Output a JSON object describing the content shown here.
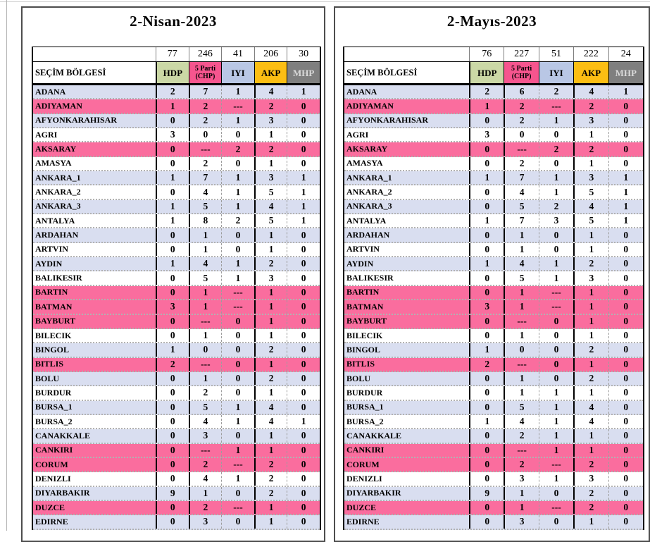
{
  "columns": {
    "region_header": "SEÇİM BÖLGESİ",
    "parties": [
      {
        "label": "HDP"
      },
      {
        "label": "5 Parti",
        "sub": "(CHP)"
      },
      {
        "label": "IYI"
      },
      {
        "label": "AKP"
      },
      {
        "label": "MHP"
      }
    ]
  },
  "colors": {
    "party_bg": [
      "#cbd8a6",
      "#f6558e",
      "#b9c7e5",
      "#fcbe13",
      "#7f7f7f"
    ],
    "party_text": [
      "#000000",
      "#000000",
      "#000000",
      "#000000",
      "#d9d9d9"
    ],
    "row_bg": {
      "white": "#ffffff",
      "lav": "#d9def0",
      "pink": "#fa6d9e"
    }
  },
  "tables": [
    {
      "title": "2-Nisan-2023",
      "totals": [
        "77",
        "246",
        "41",
        "206",
        "30"
      ],
      "rows": [
        {
          "region": "ADANA",
          "hl": "lav",
          "values": [
            "2",
            "7",
            "1",
            "4",
            "1"
          ]
        },
        {
          "region": "ADIYAMAN",
          "hl": "pink",
          "values": [
            "1",
            "2",
            "---",
            "2",
            "0"
          ]
        },
        {
          "region": "AFYONKARAHISAR",
          "hl": "lav",
          "values": [
            "0",
            "2",
            "1",
            "3",
            "0"
          ]
        },
        {
          "region": "AGRI",
          "hl": "white",
          "values": [
            "3",
            "0",
            "0",
            "1",
            "0"
          ]
        },
        {
          "region": "AKSARAY",
          "hl": "pink",
          "values": [
            "0",
            "---",
            "2",
            "2",
            "0"
          ]
        },
        {
          "region": "AMASYA",
          "hl": "white",
          "values": [
            "0",
            "2",
            "0",
            "1",
            "0"
          ]
        },
        {
          "region": "ANKARA_1",
          "hl": "lav",
          "values": [
            "1",
            "7",
            "1",
            "3",
            "1"
          ]
        },
        {
          "region": "ANKARA_2",
          "hl": "white",
          "values": [
            "0",
            "4",
            "1",
            "5",
            "1"
          ]
        },
        {
          "region": "ANKARA_3",
          "hl": "lav",
          "values": [
            "1",
            "5",
            "1",
            "4",
            "1"
          ]
        },
        {
          "region": "ANTALYA",
          "hl": "white",
          "values": [
            "1",
            "8",
            "2",
            "5",
            "1"
          ]
        },
        {
          "region": "ARDAHAN",
          "hl": "lav",
          "values": [
            "0",
            "1",
            "0",
            "1",
            "0"
          ]
        },
        {
          "region": "ARTVIN",
          "hl": "white",
          "values": [
            "0",
            "1",
            "0",
            "1",
            "0"
          ]
        },
        {
          "region": "AYDIN",
          "hl": "lav",
          "values": [
            "1",
            "4",
            "1",
            "2",
            "0"
          ]
        },
        {
          "region": "BALIKESIR",
          "hl": "white",
          "values": [
            "0",
            "5",
            "1",
            "3",
            "0"
          ]
        },
        {
          "region": "BARTIN",
          "hl": "pink",
          "values": [
            "0",
            "1",
            "---",
            "1",
            "0"
          ]
        },
        {
          "region": "BATMAN",
          "hl": "pink",
          "values": [
            "3",
            "1",
            "---",
            "1",
            "0"
          ]
        },
        {
          "region": "BAYBURT",
          "hl": "pink",
          "values": [
            "0",
            "---",
            "0",
            "1",
            "0"
          ]
        },
        {
          "region": "BILECIK",
          "hl": "white",
          "values": [
            "0",
            "1",
            "0",
            "1",
            "0"
          ]
        },
        {
          "region": "BINGOL",
          "hl": "lav",
          "values": [
            "1",
            "0",
            "0",
            "2",
            "0"
          ]
        },
        {
          "region": "BITLIS",
          "hl": "pink",
          "values": [
            "2",
            "---",
            "0",
            "1",
            "0"
          ]
        },
        {
          "region": "BOLU",
          "hl": "lav",
          "values": [
            "0",
            "1",
            "0",
            "2",
            "0"
          ]
        },
        {
          "region": "BURDUR",
          "hl": "white",
          "values": [
            "0",
            "2",
            "0",
            "1",
            "0"
          ]
        },
        {
          "region": "BURSA_1",
          "hl": "lav",
          "values": [
            "0",
            "5",
            "1",
            "4",
            "0"
          ]
        },
        {
          "region": "BURSA_2",
          "hl": "white",
          "values": [
            "0",
            "4",
            "1",
            "4",
            "1"
          ]
        },
        {
          "region": "CANAKKALE",
          "hl": "lav",
          "values": [
            "0",
            "3",
            "0",
            "1",
            "0"
          ]
        },
        {
          "region": "CANKIRI",
          "hl": "pink",
          "values": [
            "0",
            "---",
            "1",
            "1",
            "0"
          ]
        },
        {
          "region": "CORUM",
          "hl": "pink",
          "values": [
            "0",
            "2",
            "---",
            "2",
            "0"
          ]
        },
        {
          "region": "DENIZLI",
          "hl": "white",
          "values": [
            "0",
            "4",
            "1",
            "2",
            "0"
          ]
        },
        {
          "region": "DIYARBAKIR",
          "hl": "lav",
          "values": [
            "9",
            "1",
            "0",
            "2",
            "0"
          ]
        },
        {
          "region": "DUZCE",
          "hl": "pink",
          "values": [
            "0",
            "2",
            "---",
            "1",
            "0"
          ]
        },
        {
          "region": "EDIRNE",
          "hl": "lav",
          "values": [
            "0",
            "3",
            "0",
            "1",
            "0"
          ]
        }
      ]
    },
    {
      "title": "2-Mayıs-2023",
      "totals": [
        "76",
        "227",
        "51",
        "222",
        "24"
      ],
      "rows": [
        {
          "region": "ADANA",
          "hl": "lav",
          "values": [
            "2",
            "6",
            "2",
            "4",
            "1"
          ]
        },
        {
          "region": "ADIYAMAN",
          "hl": "pink",
          "values": [
            "1",
            "2",
            "---",
            "2",
            "0"
          ]
        },
        {
          "region": "AFYONKARAHISAR",
          "hl": "lav",
          "values": [
            "0",
            "2",
            "1",
            "3",
            "0"
          ]
        },
        {
          "region": "AGRI",
          "hl": "white",
          "values": [
            "3",
            "0",
            "0",
            "1",
            "0"
          ]
        },
        {
          "region": "AKSARAY",
          "hl": "pink",
          "values": [
            "0",
            "---",
            "2",
            "2",
            "0"
          ]
        },
        {
          "region": "AMASYA",
          "hl": "white",
          "values": [
            "0",
            "2",
            "0",
            "1",
            "0"
          ]
        },
        {
          "region": "ANKARA_1",
          "hl": "lav",
          "values": [
            "1",
            "7",
            "1",
            "3",
            "1"
          ]
        },
        {
          "region": "ANKARA_2",
          "hl": "white",
          "values": [
            "0",
            "4",
            "1",
            "5",
            "1"
          ]
        },
        {
          "region": "ANKARA_3",
          "hl": "lav",
          "values": [
            "0",
            "5",
            "2",
            "4",
            "1"
          ]
        },
        {
          "region": "ANTALYA",
          "hl": "white",
          "values": [
            "1",
            "7",
            "3",
            "5",
            "1"
          ]
        },
        {
          "region": "ARDAHAN",
          "hl": "lav",
          "values": [
            "0",
            "1",
            "0",
            "1",
            "0"
          ]
        },
        {
          "region": "ARTVIN",
          "hl": "white",
          "values": [
            "0",
            "1",
            "0",
            "1",
            "0"
          ]
        },
        {
          "region": "AYDIN",
          "hl": "lav",
          "values": [
            "1",
            "4",
            "1",
            "2",
            "0"
          ]
        },
        {
          "region": "BALIKESIR",
          "hl": "white",
          "values": [
            "0",
            "5",
            "1",
            "3",
            "0"
          ]
        },
        {
          "region": "BARTIN",
          "hl": "pink",
          "values": [
            "0",
            "1",
            "---",
            "1",
            "0"
          ]
        },
        {
          "region": "BATMAN",
          "hl": "pink",
          "values": [
            "3",
            "1",
            "---",
            "1",
            "0"
          ]
        },
        {
          "region": "BAYBURT",
          "hl": "pink",
          "values": [
            "0",
            "---",
            "0",
            "1",
            "0"
          ]
        },
        {
          "region": "BILECIK",
          "hl": "white",
          "values": [
            "0",
            "1",
            "0",
            "1",
            "0"
          ]
        },
        {
          "region": "BINGOL",
          "hl": "lav",
          "values": [
            "1",
            "0",
            "0",
            "2",
            "0"
          ]
        },
        {
          "region": "BITLIS",
          "hl": "pink",
          "values": [
            "2",
            "---",
            "0",
            "1",
            "0"
          ]
        },
        {
          "region": "BOLU",
          "hl": "lav",
          "values": [
            "0",
            "1",
            "0",
            "2",
            "0"
          ]
        },
        {
          "region": "BURDUR",
          "hl": "white",
          "values": [
            "0",
            "1",
            "1",
            "1",
            "0"
          ]
        },
        {
          "region": "BURSA_1",
          "hl": "lav",
          "values": [
            "0",
            "5",
            "1",
            "4",
            "0"
          ]
        },
        {
          "region": "BURSA_2",
          "hl": "white",
          "values": [
            "1",
            "4",
            "1",
            "4",
            "0"
          ]
        },
        {
          "region": "CANAKKALE",
          "hl": "lav",
          "values": [
            "0",
            "2",
            "1",
            "1",
            "0"
          ]
        },
        {
          "region": "CANKIRI",
          "hl": "pink",
          "values": [
            "0",
            "---",
            "1",
            "1",
            "0"
          ]
        },
        {
          "region": "CORUM",
          "hl": "pink",
          "values": [
            "0",
            "2",
            "---",
            "2",
            "0"
          ]
        },
        {
          "region": "DENIZLI",
          "hl": "white",
          "values": [
            "0",
            "3",
            "1",
            "3",
            "0"
          ]
        },
        {
          "region": "DIYARBAKIR",
          "hl": "lav",
          "values": [
            "9",
            "1",
            "0",
            "2",
            "0"
          ]
        },
        {
          "region": "DUZCE",
          "hl": "pink",
          "values": [
            "0",
            "1",
            "---",
            "2",
            "0"
          ]
        },
        {
          "region": "EDIRNE",
          "hl": "lav",
          "values": [
            "0",
            "3",
            "0",
            "1",
            "0"
          ]
        }
      ]
    }
  ]
}
